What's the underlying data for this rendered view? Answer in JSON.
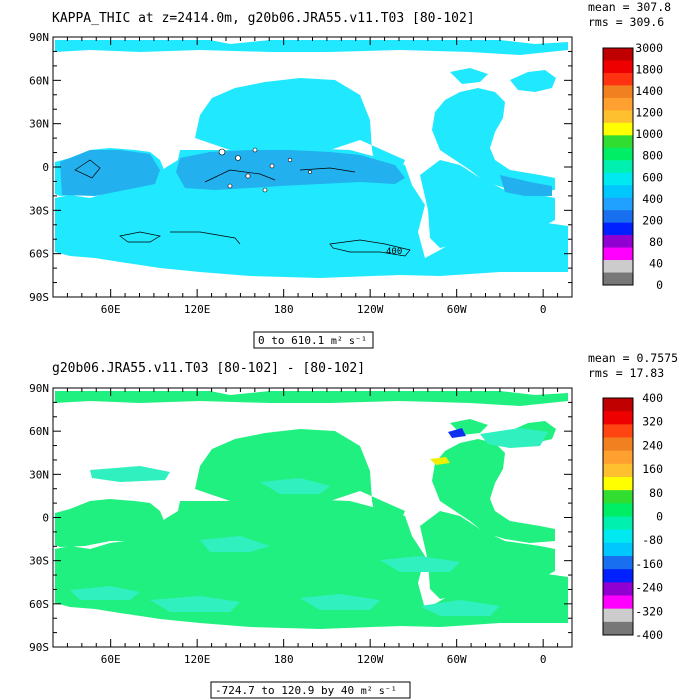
{
  "chart_data": [
    {
      "type": "heatmap",
      "title": "KAPPA_THIC at z=2414.0m, g20b06.JRA55.v11.T03 [80-102]",
      "stats": {
        "mean": "mean = 307.8",
        "rms": "rms = 309.6"
      },
      "range_label": "0 to 610.1",
      "units_label": "m² s⁻¹",
      "y_ticks": [
        "90N",
        "60N",
        "30N",
        "0",
        "30S",
        "60S",
        "90S"
      ],
      "x_ticks": [
        "60E",
        "120E",
        "180",
        "120W",
        "60W",
        "0"
      ],
      "colorbar_levels": [
        "3000",
        "1800",
        "1400",
        "1200",
        "1000",
        "800",
        "600",
        "400",
        "200",
        "80",
        "40",
        "0"
      ],
      "colorbar_colors": [
        "#c00000",
        "#ee0000",
        "#ff3311",
        "#f08020",
        "#ffa030",
        "#ffc030",
        "#ffff00",
        "#30dd30",
        "#00ee66",
        "#00f0b0",
        "#00e8f0",
        "#00c8ff",
        "#20a0ff",
        "#1870f0",
        "#0020ff",
        "#9000d0",
        "#ff00ff",
        "#cccccc",
        "#777777"
      ],
      "field_colors": {
        "primary": "#20e8ff",
        "secondary": "#22b0ee"
      },
      "contour_label": "400"
    },
    {
      "type": "heatmap",
      "title": "g20b06.JRA55.v11.T03 [80-102] -  [80-102]",
      "stats": {
        "mean": "mean = 0.7575",
        "rms": "rms = 17.83"
      },
      "range_label": "-724.7 to 120.9 by 40",
      "units_label": "m² s⁻¹",
      "y_ticks": [
        "90N",
        "60N",
        "30N",
        "0",
        "30S",
        "60S",
        "90S"
      ],
      "x_ticks": [
        "60E",
        "120E",
        "180",
        "120W",
        "60W",
        "0"
      ],
      "colorbar_levels": [
        "400",
        "320",
        "240",
        "160",
        "80",
        "0",
        "-80",
        "-160",
        "-240",
        "-320",
        "-400"
      ],
      "colorbar_colors": [
        "#c00000",
        "#ee0000",
        "#ff4411",
        "#f08020",
        "#ffa030",
        "#ffc030",
        "#ffff00",
        "#30dd30",
        "#00ee66",
        "#00f0b0",
        "#00e8f0",
        "#00c8ff",
        "#1870f0",
        "#0020ff",
        "#9000d0",
        "#ff00ff",
        "#cccccc",
        "#777777"
      ],
      "field_colors": {
        "primary": "#20f080",
        "secondary": "#30f0c0"
      }
    }
  ]
}
